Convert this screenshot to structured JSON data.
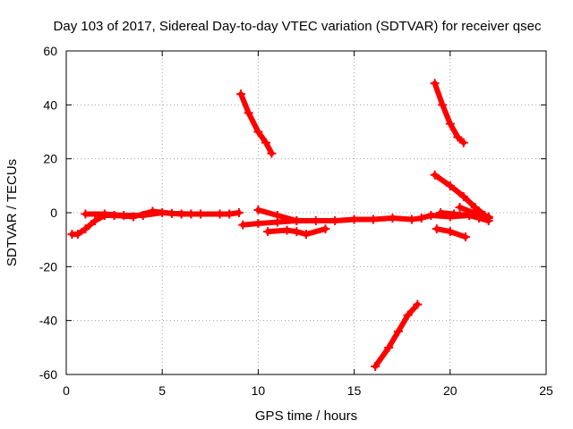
{
  "chart_data": {
    "type": "scatter",
    "title": "Day 103 of 2017, Sidereal Day-to-day VTEC variation (SDTVAR) for receiver qsec",
    "xlabel": "GPS time / hours",
    "ylabel": "SDTVAR / TECUs",
    "xlim": [
      0,
      25
    ],
    "ylim": [
      -60,
      60
    ],
    "xticks": [
      0,
      5,
      10,
      15,
      20,
      25
    ],
    "yticks": [
      -60,
      -40,
      -20,
      0,
      20,
      40,
      60
    ],
    "grid": true,
    "marker": "plus",
    "color": "#ff0000",
    "series": [
      {
        "x": [
          0.3,
          0.6,
          1.0,
          1.5,
          2.0,
          2.5
        ],
        "y": [
          -8,
          -8,
          -6,
          -3,
          -1,
          -1
        ]
      },
      {
        "x": [
          1.0,
          2.0,
          3.0,
          4.0,
          5.0,
          6.0,
          7.0,
          8.0,
          8.5,
          9.0
        ],
        "y": [
          -0.5,
          -0.5,
          -1,
          -1,
          0,
          -0.5,
          -0.5,
          -0.5,
          -0.5,
          0
        ]
      },
      {
        "x": [
          2.5,
          3.5,
          4.5,
          5.5,
          6.5
        ],
        "y": [
          -1,
          -1.5,
          0.5,
          -0.3,
          -0.5
        ]
      },
      {
        "x": [
          9.1,
          9.5,
          10.0,
          10.4,
          10.7
        ],
        "y": [
          44,
          37,
          30,
          26,
          22
        ]
      },
      {
        "x": [
          9.2,
          10.0,
          11.0,
          12.0,
          13.0,
          14.0,
          15.0,
          16.0,
          17.0,
          18.0,
          18.5,
          19.0,
          20.0,
          21.0,
          22.0
        ],
        "y": [
          -4.5,
          -4,
          -3.5,
          -3,
          -3,
          -3,
          -2.5,
          -2.5,
          -2,
          -2.5,
          -2,
          -1,
          -1.5,
          -1,
          -1.5
        ]
      },
      {
        "x": [
          10.0,
          11.0,
          12.0
        ],
        "y": [
          1,
          -1,
          -3
        ]
      },
      {
        "x": [
          10.5,
          11.5,
          12.0,
          12.5,
          13.5
        ],
        "y": [
          -7,
          -6.5,
          -7,
          -8,
          -6
        ]
      },
      {
        "x": [
          16.1,
          16.8,
          17.3,
          17.8,
          18.3
        ],
        "y": [
          -57,
          -50,
          -44,
          -38,
          -34
        ]
      },
      {
        "x": [
          19.2,
          19.6,
          20.0,
          20.4,
          20.7
        ],
        "y": [
          48,
          40,
          33,
          28,
          26
        ]
      },
      {
        "x": [
          19.2,
          20.0,
          20.7,
          21.3,
          22.0
        ],
        "y": [
          14,
          10,
          6,
          2,
          -2
        ]
      },
      {
        "x": [
          19.5,
          20.2,
          21.0,
          21.5,
          22.0
        ],
        "y": [
          0,
          -0.5,
          -1,
          -2,
          -3
        ]
      },
      {
        "x": [
          19.3,
          20.0,
          20.8
        ],
        "y": [
          -6,
          -7,
          -9
        ]
      },
      {
        "x": [
          20.5,
          21.2,
          21.8
        ],
        "y": [
          2,
          0,
          -1
        ]
      }
    ]
  }
}
